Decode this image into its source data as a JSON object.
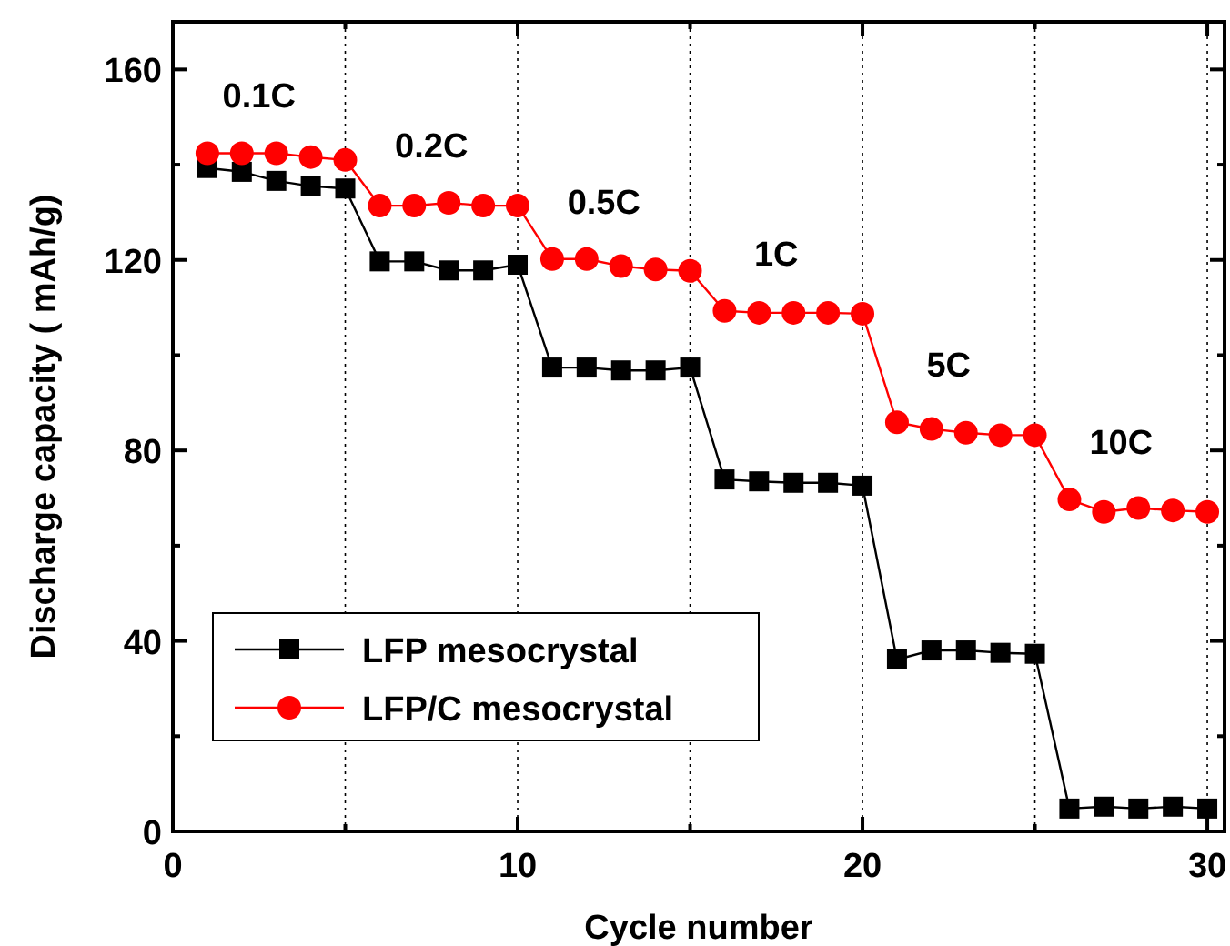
{
  "chart_data": {
    "type": "line",
    "xlabel": "Cycle number",
    "ylabel": "Discharge capacity ( mAh/g)",
    "x": [
      1,
      2,
      3,
      4,
      5,
      6,
      7,
      8,
      9,
      10,
      11,
      12,
      13,
      14,
      15,
      16,
      17,
      18,
      19,
      20,
      21,
      22,
      23,
      24,
      25,
      26,
      27,
      28,
      29,
      30
    ],
    "series": [
      {
        "name": "LFP mesocrystal",
        "color": "#000000",
        "marker": "square",
        "values": [
          139.3,
          138.5,
          136.6,
          135.5,
          135,
          119.7,
          119.7,
          117.8,
          117.8,
          119,
          97.4,
          97.4,
          96.8,
          96.8,
          97.4,
          73.9,
          73.5,
          73.2,
          73.2,
          72.6,
          36.1,
          38,
          38,
          37.5,
          37.3,
          4.8,
          5.2,
          4.8,
          5.2,
          4.8
        ]
      },
      {
        "name": "LFP/C mesocrystal",
        "color": "#ff0000",
        "marker": "circle",
        "values": [
          142.4,
          142.4,
          142.4,
          141.6,
          141,
          131.4,
          131.4,
          132,
          131.4,
          131.4,
          120.2,
          120.2,
          118.7,
          118,
          117.7,
          109.3,
          108.9,
          108.9,
          108.9,
          108.7,
          85.9,
          84.5,
          83.7,
          83.2,
          83.2,
          69.7,
          67.1,
          67.9,
          67.4,
          67.1
        ]
      }
    ],
    "xlim": [
      0,
      30.5
    ],
    "xticks": [
      0,
      {
        "value": 5,
        "label": null
      },
      10,
      {
        "value": 15,
        "label": null
      },
      20,
      {
        "value": 25,
        "label": null
      },
      30
    ],
    "ylim": [
      0,
      170
    ],
    "yticks": [
      0,
      {
        "value": 20,
        "label": null
      },
      40,
      {
        "value": 60,
        "label": null
      },
      80,
      {
        "value": 100,
        "label": null
      },
      120,
      {
        "value": 140,
        "label": null
      },
      160
    ],
    "ref_lines": [
      {
        "axis": "x",
        "value": 5,
        "line_style": "dotted"
      },
      {
        "axis": "x",
        "value": 10,
        "line_style": "dotted"
      },
      {
        "axis": "x",
        "value": 15,
        "line_style": "dotted"
      },
      {
        "axis": "x",
        "value": 20,
        "line_style": "dotted"
      },
      {
        "axis": "x",
        "value": 25,
        "line_style": "dotted"
      },
      {
        "axis": "x",
        "value": 30,
        "line_style": "dotted"
      }
    ],
    "annotations": [
      "0.1C",
      "0.2C",
      "0.5C",
      "1C",
      "5C",
      "10C"
    ],
    "legend": "bottom left",
    "line_style": "solid",
    "grid": false
  }
}
